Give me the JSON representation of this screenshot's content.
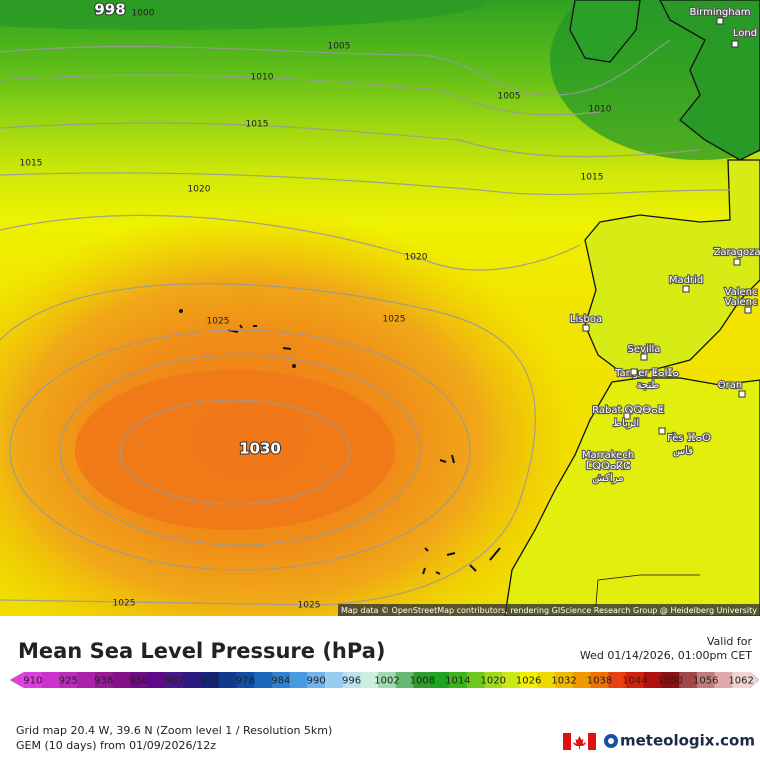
{
  "map": {
    "isobar_labels": [
      "998",
      "1000",
      "1005",
      "1010",
      "1005",
      "1010",
      "1015",
      "1015",
      "1015",
      "1020",
      "1020",
      "1025",
      "1025",
      "1030",
      "1025",
      "1025"
    ],
    "cities": [
      "Birmingham",
      "Lond",
      "Zaragoza",
      "Madrid",
      "Valenc",
      "Valenc",
      "Lisboa",
      "Sevilla",
      "Tanger ⵟⴰⵏⵊⴰ",
      "طنجة",
      "Oran",
      "Rabat ⵕⵕⴱⴰⵟ",
      "الرباط",
      "Fès ⴼⴰⵙ",
      "فاس",
      "Marrakech",
      "ⵎⵕⵕⴰⴽⵛ",
      "مراكش"
    ],
    "attribution": "Map data © OpenStreetMap contributors, rendering GIScience Research Group @ Heidelberg University"
  },
  "header": {
    "title": "Mean Sea Level Pressure (hPa)",
    "valid_label": "Valid for",
    "valid_time": "Wed 01/14/2026, 01:00pm CET"
  },
  "legend": {
    "labels": [
      910,
      925,
      938,
      950,
      962,
      972,
      978,
      984,
      990,
      996,
      1002,
      1008,
      1014,
      1020,
      1026,
      1032,
      1038,
      1044,
      1050,
      1056,
      1062
    ],
    "colors": [
      "#dd3fdd",
      "#cc33cc",
      "#bb2bbb",
      "#aa22aa",
      "#991a99",
      "#861088",
      "#730a88",
      "#5e0a88",
      "#48188a",
      "#2a1a80",
      "#14267a",
      "#103a8c",
      "#104ea4",
      "#1a66bc",
      "#2e80d0",
      "#4a9ae0",
      "#70b4ec",
      "#98ccf0",
      "#bce2f2",
      "#cceee0",
      "#a0d8b0",
      "#66b874",
      "#2e9e30",
      "#1ea41e",
      "#3cb41c",
      "#6ec81c",
      "#a0da1c",
      "#cce818",
      "#f0f000",
      "#f0d800",
      "#f0b800",
      "#f09800",
      "#f07000",
      "#e84010",
      "#d02010",
      "#b01010",
      "#8c1010",
      "#a04848",
      "#c07c7c",
      "#e0aaaa",
      "#f0d4d4"
    ]
  },
  "footer": {
    "grid": "Grid map 20.4 W, 39.6 N (Zoom level 1 / Resolution 5km)",
    "model": "GEM (10 days) from 01/09/2026/12z",
    "brand": "meteologix.com"
  }
}
